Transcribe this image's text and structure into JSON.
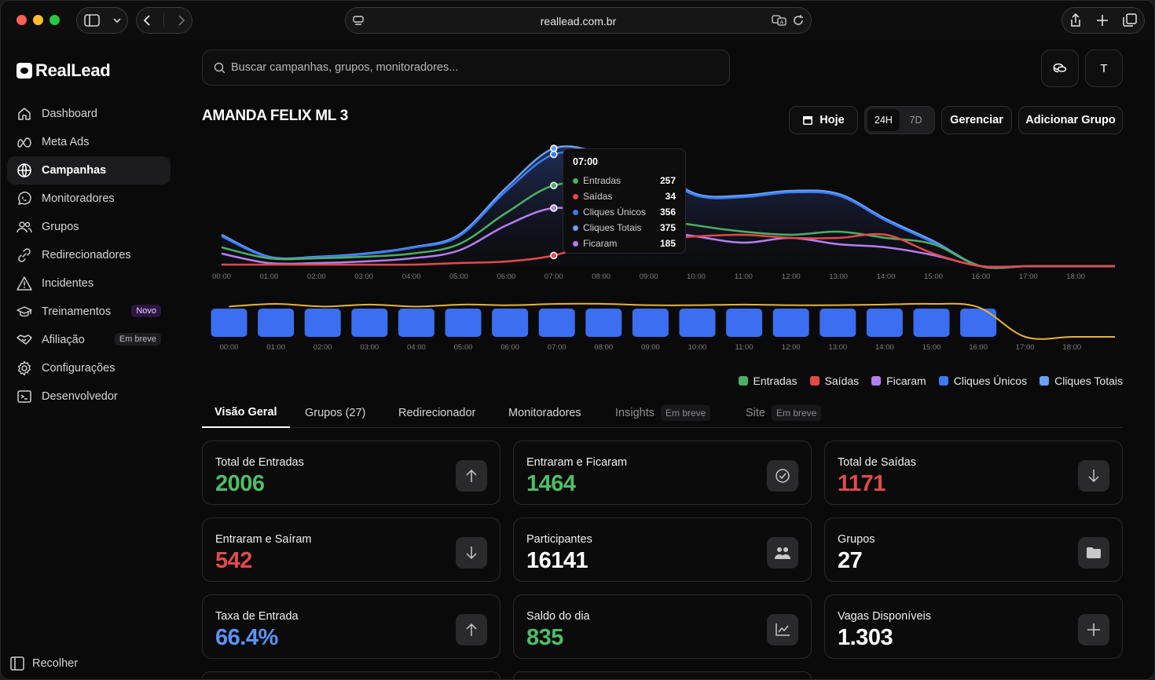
{
  "browser": {
    "url": "reallead.com.br"
  },
  "sidebar": {
    "logo": "RealLead",
    "items": [
      {
        "label": "Dashboard",
        "icon": "home-icon"
      },
      {
        "label": "Meta Ads",
        "icon": "meta-icon"
      },
      {
        "label": "Campanhas",
        "icon": "globe-icon",
        "active": true
      },
      {
        "label": "Monitoradores",
        "icon": "whatsapp-icon"
      },
      {
        "label": "Grupos",
        "icon": "users-icon"
      },
      {
        "label": "Redirecionadores",
        "icon": "link-icon"
      },
      {
        "label": "Incidentes",
        "icon": "warning-icon"
      },
      {
        "label": "Treinamentos",
        "icon": "graduation-cap-icon",
        "badge": "Novo"
      },
      {
        "label": "Afiliação",
        "icon": "handshake-icon",
        "badge": "Em breve"
      },
      {
        "label": "Configurações",
        "icon": "gear-icon"
      },
      {
        "label": "Desenvolvedor",
        "icon": "terminal-icon"
      }
    ],
    "collapse_label": "Recolher"
  },
  "header": {
    "search_placeholder": "Buscar campanhas, grupos, monitoradores...",
    "avatar_initial": "T"
  },
  "campaign": {
    "title": "AMANDA FELIX ML 3",
    "today_label": "Hoje",
    "range_options": [
      "24H",
      "7D"
    ],
    "range_selected": "24H",
    "manage_label": "Gerenciar",
    "add_group_label": "Adicionar Grupo"
  },
  "tooltip": {
    "time": "07:00",
    "rows": [
      {
        "label": "Entradas",
        "value": "257",
        "color": "#4caf63"
      },
      {
        "label": "Saídas",
        "value": "34",
        "color": "#e24a4a"
      },
      {
        "label": "Cliques Únicos",
        "value": "356",
        "color": "#3b7bf5"
      },
      {
        "label": "Cliques Totais",
        "value": "375",
        "color": "#6aa0f5"
      },
      {
        "label": "Ficaram",
        "value": "185",
        "color": "#b57ef0"
      }
    ]
  },
  "chart_data": [
    {
      "type": "area",
      "categories": [
        "00:00",
        "01:00",
        "02:00",
        "03:00",
        "04:00",
        "05:00",
        "06:00",
        "07:00",
        "08:00",
        "09:00",
        "10:00",
        "11:00",
        "12:00",
        "13:00",
        "14:00",
        "15:00",
        "16:00",
        "17:00",
        "18:00"
      ],
      "series": [
        {
          "name": "Cliques Totais",
          "color": "#6aa0f5",
          "values": [
            100,
            30,
            30,
            40,
            60,
            100,
            250,
            375,
            360,
            320,
            230,
            225,
            240,
            230,
            150,
            80,
            0,
            0,
            0
          ]
        },
        {
          "name": "Cliques Únicos",
          "color": "#3b7bf5",
          "values": [
            95,
            28,
            28,
            38,
            58,
            95,
            240,
            356,
            345,
            310,
            225,
            220,
            235,
            225,
            145,
            75,
            0,
            0,
            0
          ]
        },
        {
          "name": "Entradas",
          "color": "#4caf63",
          "values": [
            60,
            25,
            25,
            30,
            40,
            70,
            170,
            257,
            250,
            160,
            130,
            110,
            100,
            110,
            90,
            70,
            0,
            0,
            0
          ]
        },
        {
          "name": "Ficaram",
          "color": "#b57ef0",
          "values": [
            40,
            10,
            10,
            15,
            25,
            50,
            130,
            185,
            160,
            120,
            95,
            75,
            90,
            70,
            60,
            35,
            0,
            0,
            0
          ]
        },
        {
          "name": "Saídas",
          "color": "#e24a4a",
          "values": [
            5,
            5,
            5,
            5,
            5,
            10,
            15,
            34,
            80,
            85,
            95,
            100,
            90,
            90,
            100,
            40,
            0,
            0,
            0
          ]
        }
      ]
    },
    {
      "type": "bar",
      "categories": [
        "00:00",
        "01:00",
        "02:00",
        "03:00",
        "04:00",
        "05:00",
        "06:00",
        "07:00",
        "08:00",
        "09:00",
        "10:00",
        "11:00",
        "12:00",
        "13:00",
        "14:00",
        "15:00",
        "16:00",
        "17:00",
        "18:00"
      ],
      "series": [
        {
          "name": "Ficaram",
          "values": [
            1,
            1,
            1,
            1,
            1,
            1,
            1,
            1,
            1,
            1,
            1,
            1,
            1,
            1,
            1,
            1,
            1,
            0,
            0
          ]
        },
        {
          "name": "Cliques Únicos",
          "values": [
            0.92,
            1,
            0.92,
            0.98,
            0.92,
            0.98,
            0.96,
            1,
            1,
            0.96,
            0.96,
            0.98,
            0.96,
            0.96,
            0.98,
            1,
            0.9,
            0,
            0
          ]
        }
      ]
    }
  ],
  "legend": [
    {
      "label": "Entradas",
      "color": "#4caf63"
    },
    {
      "label": "Saídas",
      "color": "#e24a4a"
    },
    {
      "label": "Ficaram",
      "color": "#b57ef0"
    },
    {
      "label": "Cliques Únicos",
      "color": "#3b7bf5"
    },
    {
      "label": "Cliques Totais",
      "color": "#6aa0f5"
    }
  ],
  "tabs": [
    {
      "label": "Visão Geral",
      "active": true
    },
    {
      "label": "Grupos (27)"
    },
    {
      "label": "Redirecionador"
    },
    {
      "label": "Monitoradores"
    },
    {
      "label": "Insights",
      "soon": "Em breve"
    },
    {
      "label": "Site",
      "soon": "Em breve"
    }
  ],
  "stats": [
    {
      "label": "Total de Entradas",
      "value": "2006",
      "color": "#4fbe67",
      "icon": "arrow-up-icon"
    },
    {
      "label": "Entraram e Ficaram",
      "value": "1464",
      "color": "#4fbe67",
      "icon": "check-circle-icon"
    },
    {
      "label": "Total de Saídas",
      "value": "1171",
      "color": "#e24a4a",
      "icon": "arrow-down-icon"
    },
    {
      "label": "Entraram e Saíram",
      "value": "542",
      "color": "#e24a4a",
      "icon": "arrow-down-icon"
    },
    {
      "label": "Participantes",
      "value": "16141",
      "color": "#ffffff",
      "icon": "people-icon"
    },
    {
      "label": "Grupos",
      "value": "27",
      "color": "#ffffff",
      "icon": "folder-icon"
    },
    {
      "label": "Taxa de Entrada",
      "value": "66.4%",
      "color": "#5b93f5",
      "icon": "arrow-up-icon"
    },
    {
      "label": "Saldo do dia",
      "value": "835",
      "color": "#4fbe67",
      "icon": "chart-line-icon"
    },
    {
      "label": "Vagas Disponíveis",
      "value": "1.303",
      "color": "#ffffff",
      "icon": "plus-icon"
    }
  ]
}
